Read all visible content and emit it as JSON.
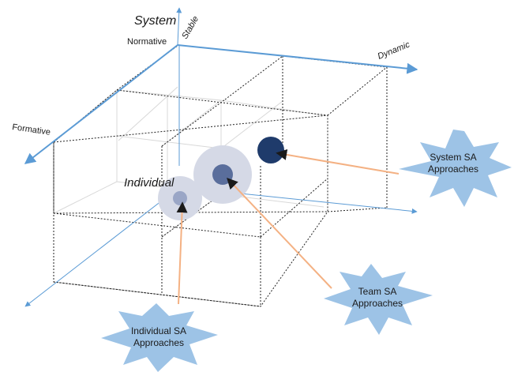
{
  "labels": {
    "system": "System",
    "stable": "Stable",
    "normative": "Normative",
    "dynamic": "Dynamic",
    "formative": "Formative",
    "individual": "Individual"
  },
  "callouts": [
    {
      "line1": "System SA",
      "line2": "Approaches",
      "color": "#1F3B6B"
    },
    {
      "line1": "Team SA",
      "line2": "Approaches",
      "color": "#5A6E9C"
    },
    {
      "line1": "Individual SA",
      "line2": "Approaches",
      "color": "#9AA6C6"
    }
  ],
  "colors": {
    "axis": "#5B9BD5",
    "arrow_line": "#F4B183",
    "starburst": "#9DC3E6",
    "halo": "#D5D9E6"
  }
}
